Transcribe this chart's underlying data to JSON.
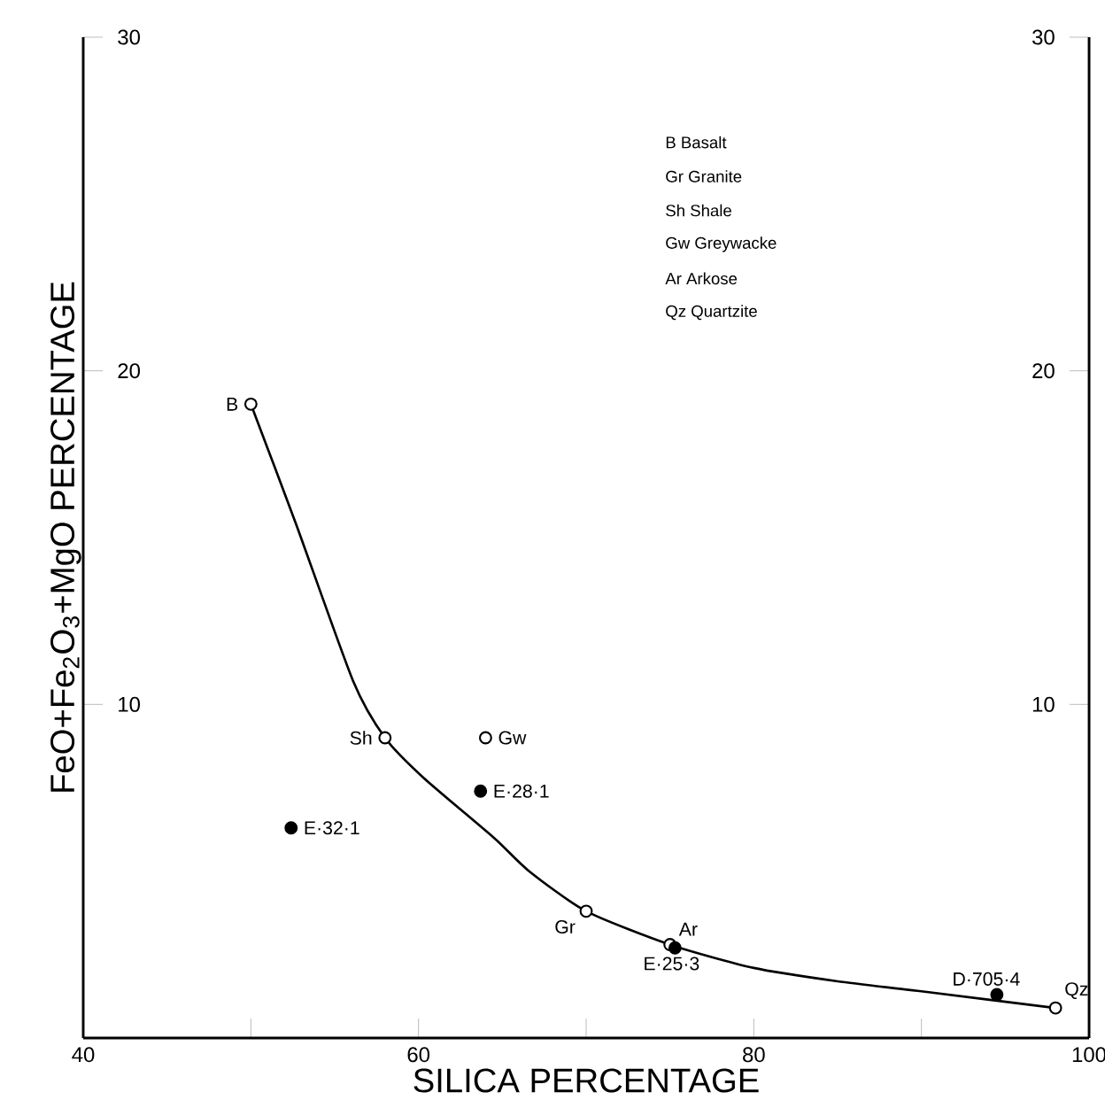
{
  "chart_data": {
    "type": "scatter",
    "xlabel": "SILICA PERCENTAGE",
    "ylabel": "FeO+Fe$_{2}$O$_{3}$+MgO PERCENTAGE",
    "xlim": [
      40,
      100
    ],
    "xticks": [
      40,
      {
        "value": 50,
        "label": null
      },
      60,
      {
        "value": 70,
        "label": null
      },
      80,
      {
        "value": 90,
        "label": null
      },
      100
    ],
    "ylim": [
      0,
      30
    ],
    "yticks": [
      10,
      20,
      30
    ],
    "y2lim": [
      0,
      30
    ],
    "y2ticks": [
      10,
      20,
      30
    ],
    "series": [
      {
        "type": "line",
        "color": "#000000",
        "marker": "none",
        "line_style": "solid",
        "x": [
          50,
          52.7,
          56.1,
          58,
          60.3,
          64.5,
          66.6,
          70,
          75,
          80,
          85,
          90,
          98
        ],
        "values": [
          19,
          15.4,
          10.7,
          9,
          7.8,
          6,
          5,
          3.8,
          2.8,
          2.1,
          1.7,
          1.4,
          0.9
        ]
      },
      {
        "color": "#ffffff",
        "marker": "circle",
        "x": [
          50,
          58,
          64,
          70,
          75,
          98
        ],
        "values": [
          19,
          9,
          9,
          3.8,
          2.8,
          0.9
        ]
      },
      {
        "color": "#000000",
        "marker": "circle",
        "x": [
          63.7,
          52.4,
          75.3,
          94.5
        ],
        "values": [
          7.4,
          6.3,
          2.7,
          1.3
        ]
      }
    ],
    "annotations": [
      "B Basalt",
      "Gr Granite",
      "Sh Shale",
      "Gw Greywacke",
      "Ar Arkose",
      "Qz Quartzite",
      {
        "text": "B",
        "x": 50,
        "y": 19
      },
      {
        "text": "Sh",
        "x": 58,
        "y": 9
      },
      {
        "text": "Gw",
        "x": 64,
        "y": 9
      },
      {
        "text": "E·28·1",
        "x": 63.7,
        "y": 7.4
      },
      {
        "text": "E·32·1",
        "x": 52.4,
        "y": 6.3
      },
      {
        "text": "Gr",
        "x": 70,
        "y": 3.8
      },
      {
        "text": "Ar",
        "x": 75,
        "y": 2.8
      },
      {
        "text": "E·25·3",
        "x": 75.3,
        "y": 2.7
      },
      {
        "text": "D·705·4",
        "x": 94.5,
        "y": 1.3
      },
      {
        "text": "Qz",
        "x": 98,
        "y": 0.9
      }
    ]
  }
}
